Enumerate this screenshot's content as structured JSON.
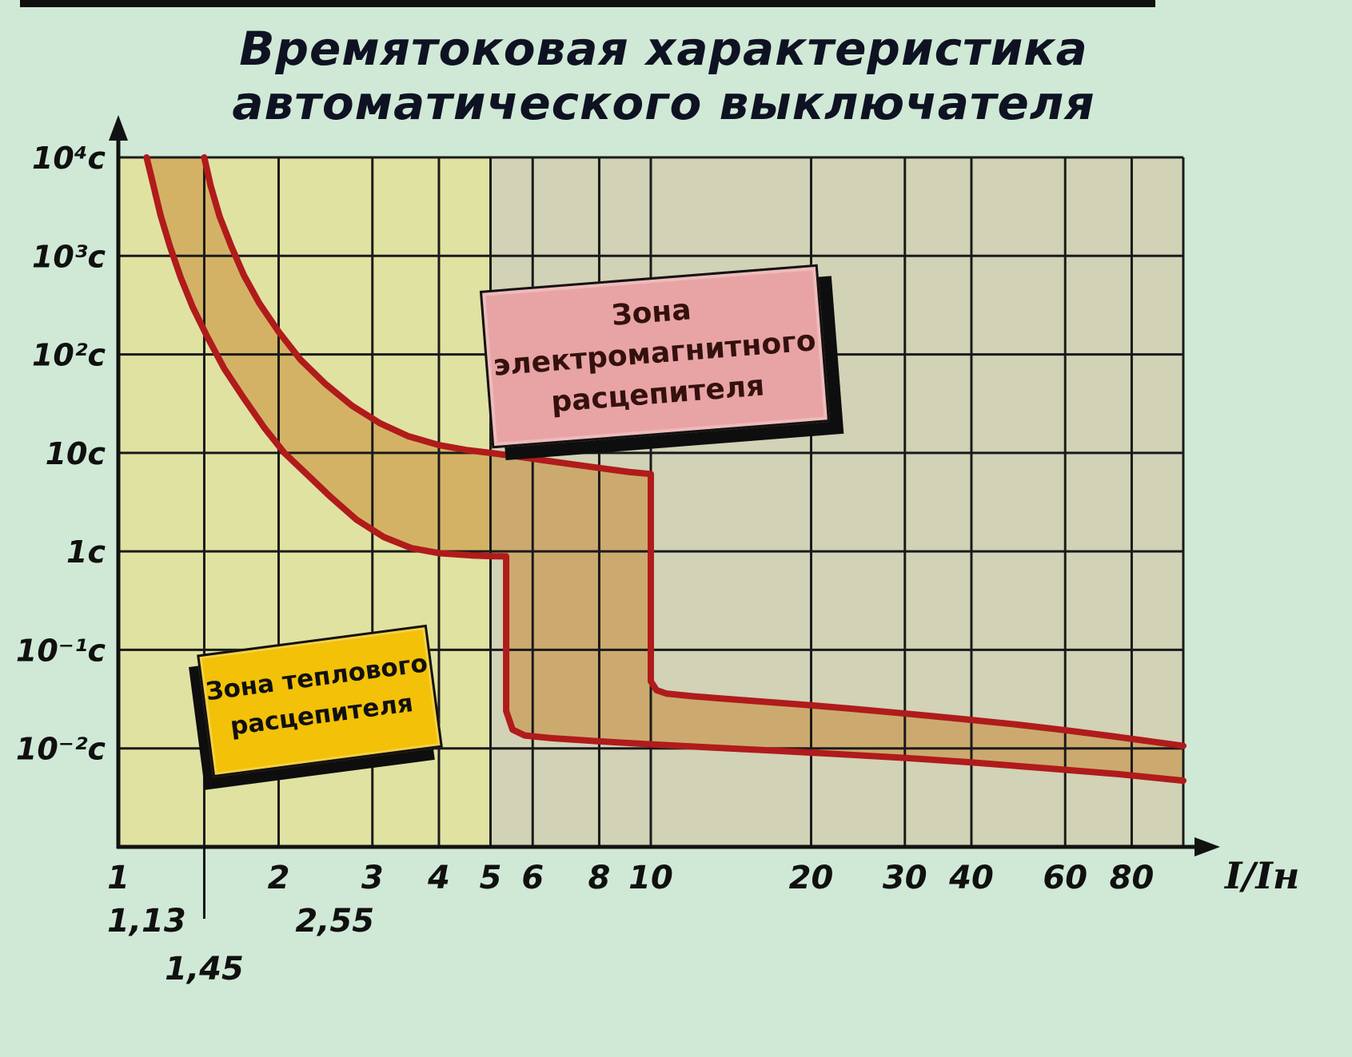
{
  "theme": {
    "page-bg": "#cfe9d6",
    "title-color": "#0f1222",
    "thermal-box-bg": "#f2c108",
    "thermal-box-text": "#101010",
    "magnetic-box-bg": "#e8a4a4",
    "magnetic-box-text": "#34110f",
    "box-border": "#121212",
    "box-shadow": "#0e0e0e"
  },
  "title": {
    "line1": "Времятоковая характеристика",
    "line2": "автоматического выключателя"
  },
  "annotations": {
    "magnetic_zone": {
      "line1": "Зона",
      "line2": "электромагнитного",
      "line3": "расцепителя"
    },
    "thermal_zone": {
      "line1": "Зона теплового",
      "line2": "расцепителя"
    }
  },
  "chart_data": {
    "type": "line",
    "title": "Времятоковая характеристика автоматического выключателя",
    "xlabel": "I/Iн",
    "x_scale": "log",
    "y_scale": "log",
    "xlim": [
      1,
      100
    ],
    "ylim": [
      0.001,
      10000
    ],
    "x_ticks": [
      {
        "v": 1,
        "label": "1"
      },
      {
        "v": 2,
        "label": "2"
      },
      {
        "v": 3,
        "label": "3"
      },
      {
        "v": 4,
        "label": "4"
      },
      {
        "v": 5,
        "label": "5"
      },
      {
        "v": 6,
        "label": "6"
      },
      {
        "v": 8,
        "label": "8"
      },
      {
        "v": 10,
        "label": "10"
      },
      {
        "v": 20,
        "label": "20"
      },
      {
        "v": 30,
        "label": "30"
      },
      {
        "v": 40,
        "label": "40"
      },
      {
        "v": 60,
        "label": "60"
      },
      {
        "v": 80,
        "label": "80"
      }
    ],
    "x_sub_ticks": [
      {
        "v": 1.13,
        "label": "1,13",
        "row": 1,
        "tick_line": false
      },
      {
        "v": 2.55,
        "label": "2,55",
        "row": 1,
        "tick_line": false
      },
      {
        "v": 1.45,
        "label": "1,45",
        "row": 2,
        "tick_line": true
      }
    ],
    "y_ticks": [
      {
        "v": 10000,
        "label": "10⁴c"
      },
      {
        "v": 1000,
        "label": "10³c"
      },
      {
        "v": 100,
        "label": "10²c"
      },
      {
        "v": 10,
        "label": "10c"
      },
      {
        "v": 1,
        "label": "1c"
      },
      {
        "v": 0.1,
        "label": "10⁻¹c"
      },
      {
        "v": 0.01,
        "label": "10⁻²c"
      }
    ],
    "grid": {
      "color": "#1a1a1a",
      "x_lines": [
        1,
        1.45,
        2,
        3,
        4,
        5,
        6,
        8,
        10,
        20,
        30,
        40,
        60,
        80,
        100
      ],
      "y_lines": [
        10000,
        1000,
        100,
        10,
        1,
        0.1,
        0.01,
        0.001
      ]
    },
    "zones": [
      {
        "name": "thermal",
        "x0": 1,
        "x1": 5,
        "color": "#e0e2a2"
      },
      {
        "name": "electromagnetic",
        "x0": 5,
        "x1": 100,
        "color": "#d1d2b6"
      }
    ],
    "band_color": "rgba(200,130,40,0.5)",
    "series": [
      {
        "name": "upper-limit",
        "color": "#b01b1b",
        "width": 8,
        "points": [
          [
            1.45,
            10000
          ],
          [
            1.49,
            5200
          ],
          [
            1.55,
            2500
          ],
          [
            1.63,
            1250
          ],
          [
            1.72,
            640
          ],
          [
            1.84,
            330
          ],
          [
            2.0,
            170
          ],
          [
            2.2,
            88
          ],
          [
            2.45,
            50
          ],
          [
            2.75,
            30
          ],
          [
            3.1,
            20
          ],
          [
            3.5,
            14.8
          ],
          [
            4.0,
            12
          ],
          [
            4.5,
            10.7
          ],
          [
            5.0,
            10
          ],
          [
            5.6,
            9.2
          ],
          [
            6.3,
            8.4
          ],
          [
            7.2,
            7.6
          ],
          [
            8.2,
            6.9
          ],
          [
            9.1,
            6.4
          ],
          [
            10,
            6.1
          ],
          [
            10,
            1.5
          ],
          [
            10,
            0.14
          ],
          [
            10,
            0.048
          ],
          [
            10.25,
            0.039
          ],
          [
            10.7,
            0.036
          ],
          [
            12,
            0.0338
          ],
          [
            15,
            0.0308
          ],
          [
            19,
            0.028
          ],
          [
            24,
            0.0252
          ],
          [
            30,
            0.0226
          ],
          [
            38,
            0.02
          ],
          [
            48,
            0.0176
          ],
          [
            60,
            0.0153
          ],
          [
            75,
            0.0131
          ],
          [
            100,
            0.0106
          ]
        ]
      },
      {
        "name": "lower-limit",
        "color": "#b01b1b",
        "width": 8,
        "points": [
          [
            1.13,
            10000
          ],
          [
            1.16,
            5600
          ],
          [
            1.2,
            2600
          ],
          [
            1.25,
            1250
          ],
          [
            1.31,
            600
          ],
          [
            1.38,
            300
          ],
          [
            1.47,
            150
          ],
          [
            1.58,
            72
          ],
          [
            1.72,
            36
          ],
          [
            1.88,
            18
          ],
          [
            2.05,
            10
          ],
          [
            2.25,
            6.2
          ],
          [
            2.5,
            3.6
          ],
          [
            2.8,
            2.1
          ],
          [
            3.15,
            1.4
          ],
          [
            3.55,
            1.08
          ],
          [
            4.0,
            0.96
          ],
          [
            4.6,
            0.91
          ],
          [
            5.0,
            0.895
          ],
          [
            5.35,
            0.89
          ],
          [
            5.35,
            0.12
          ],
          [
            5.35,
            0.024
          ],
          [
            5.5,
            0.0155
          ],
          [
            5.8,
            0.0135
          ],
          [
            6.5,
            0.0127
          ],
          [
            8,
            0.0118
          ],
          [
            10,
            0.011
          ],
          [
            13,
            0.0102
          ],
          [
            17,
            0.0095
          ],
          [
            22,
            0.0088
          ],
          [
            30,
            0.008
          ],
          [
            40,
            0.0072
          ],
          [
            55,
            0.0063
          ],
          [
            75,
            0.0055
          ],
          [
            100,
            0.0047
          ]
        ]
      }
    ]
  }
}
